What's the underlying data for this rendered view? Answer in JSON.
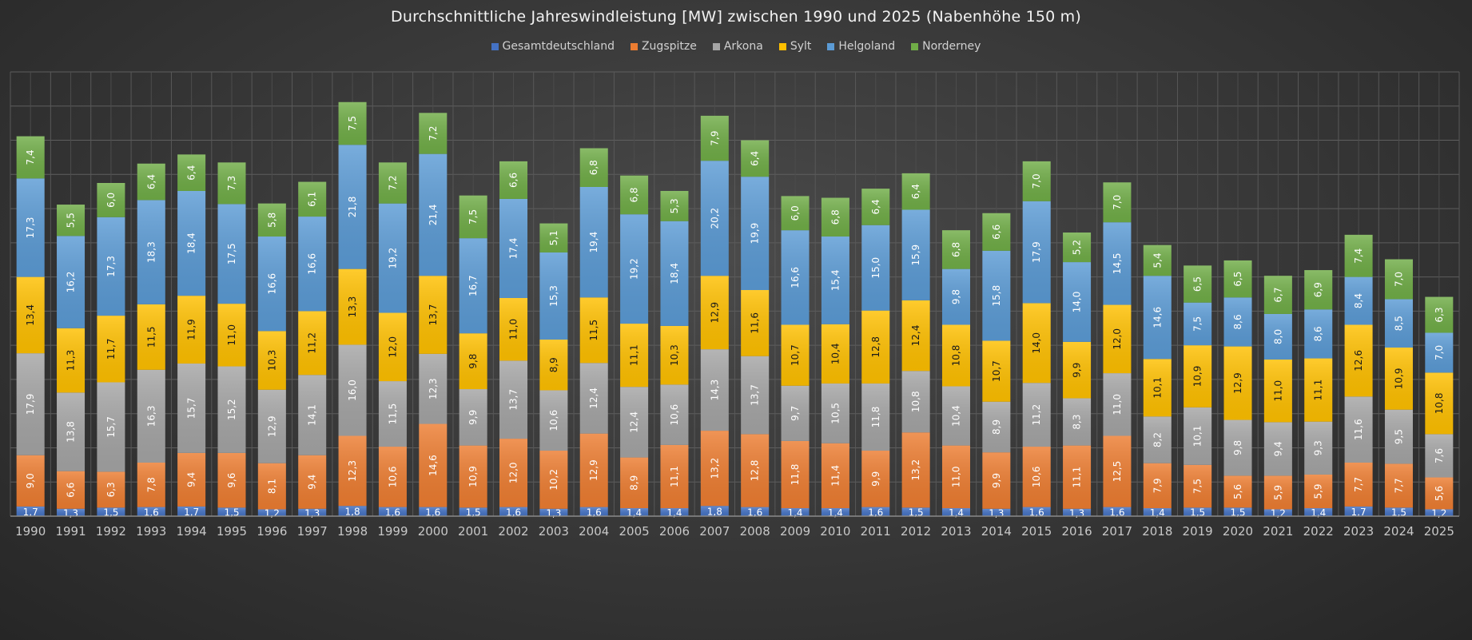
{
  "chart_data": {
    "type": "bar",
    "stacked": true,
    "title": "Durchschnittliche Jahreswindleistung [MW] zwischen 1990 und 2025 (Nabenhöhe 150 m)",
    "xlabel": "",
    "ylabel": "",
    "ylim": [
      0,
      78
    ],
    "ytick_step": 6,
    "grid": true,
    "legend_position": "top",
    "categories": [
      "1990",
      "1991",
      "1992",
      "1993",
      "1994",
      "1995",
      "1996",
      "1997",
      "1998",
      "1999",
      "2000",
      "2001",
      "2002",
      "2003",
      "2004",
      "2005",
      "2006",
      "2007",
      "2008",
      "2009",
      "2010",
      "2011",
      "2012",
      "2013",
      "2014",
      "2015",
      "2016",
      "2017",
      "2018",
      "2019",
      "2020",
      "2021",
      "2022",
      "2023",
      "2024",
      "2025"
    ],
    "series": [
      {
        "name": "Gesamtdeutschland",
        "color": "#4472c4",
        "label_color": "#ffffff",
        "values": [
          1.7,
          1.3,
          1.5,
          1.6,
          1.7,
          1.5,
          1.2,
          1.3,
          1.8,
          1.6,
          1.6,
          1.5,
          1.6,
          1.3,
          1.6,
          1.4,
          1.4,
          1.8,
          1.6,
          1.4,
          1.4,
          1.6,
          1.5,
          1.4,
          1.3,
          1.6,
          1.3,
          1.6,
          1.4,
          1.5,
          1.5,
          1.2,
          1.4,
          1.7,
          1.5,
          1.2
        ]
      },
      {
        "name": "Zugspitze",
        "color": "#ed7d31",
        "label_color": "#ffffff",
        "values": [
          9.0,
          6.6,
          6.3,
          7.8,
          9.4,
          9.6,
          8.1,
          9.4,
          12.3,
          10.6,
          14.6,
          10.9,
          12.0,
          10.2,
          12.9,
          8.9,
          11.1,
          13.2,
          12.8,
          11.8,
          11.4,
          9.9,
          13.2,
          11.0,
          9.9,
          10.6,
          11.1,
          12.5,
          7.9,
          7.5,
          5.6,
          5.9,
          5.9,
          7.7,
          7.7,
          5.6
        ]
      },
      {
        "name": "Arkona",
        "color": "#a5a5a5",
        "label_color": "#ffffff",
        "values": [
          17.9,
          13.8,
          15.7,
          16.3,
          15.7,
          15.2,
          12.9,
          14.1,
          16.0,
          11.5,
          12.3,
          9.9,
          13.7,
          10.6,
          12.4,
          12.4,
          10.6,
          14.3,
          13.7,
          9.7,
          10.5,
          11.8,
          10.8,
          10.4,
          8.9,
          11.2,
          8.3,
          11.0,
          8.2,
          10.1,
          9.8,
          9.4,
          9.3,
          11.6,
          9.5,
          7.6
        ]
      },
      {
        "name": "Sylt",
        "color": "#ffc000",
        "label_color": "#1a1a1a",
        "values": [
          13.4,
          11.3,
          11.7,
          11.5,
          11.9,
          11.0,
          10.3,
          11.2,
          13.3,
          12.0,
          13.7,
          9.8,
          11.0,
          8.9,
          11.5,
          11.1,
          10.3,
          12.9,
          11.6,
          10.7,
          10.4,
          12.8,
          12.4,
          10.8,
          10.7,
          14.0,
          9.9,
          12.0,
          10.1,
          10.9,
          12.9,
          11.0,
          11.1,
          12.6,
          10.9,
          10.8
        ]
      },
      {
        "name": "Helgoland",
        "color": "#5b9bd5",
        "label_color": "#ffffff",
        "values": [
          17.3,
          16.2,
          17.3,
          18.3,
          18.4,
          17.5,
          16.6,
          16.6,
          21.8,
          19.2,
          21.4,
          16.7,
          17.4,
          15.3,
          19.4,
          19.2,
          18.4,
          20.2,
          19.9,
          16.6,
          15.4,
          15.0,
          15.9,
          9.8,
          15.8,
          17.9,
          14.0,
          14.5,
          14.6,
          7.5,
          8.6,
          8.0,
          8.6,
          8.4,
          8.5,
          7.0
        ]
      },
      {
        "name": "Norderney",
        "color": "#70ad47",
        "label_color": "#ffffff",
        "values": [
          7.4,
          5.5,
          6.0,
          6.4,
          6.4,
          7.3,
          5.8,
          6.1,
          7.5,
          7.2,
          7.2,
          7.5,
          6.6,
          5.1,
          6.8,
          6.8,
          5.3,
          7.9,
          6.4,
          6.0,
          6.8,
          6.4,
          6.4,
          6.8,
          6.6,
          7.0,
          5.2,
          7.0,
          5.4,
          6.5,
          6.5,
          6.7,
          6.9,
          7.4,
          7.0,
          6.3
        ]
      }
    ]
  }
}
